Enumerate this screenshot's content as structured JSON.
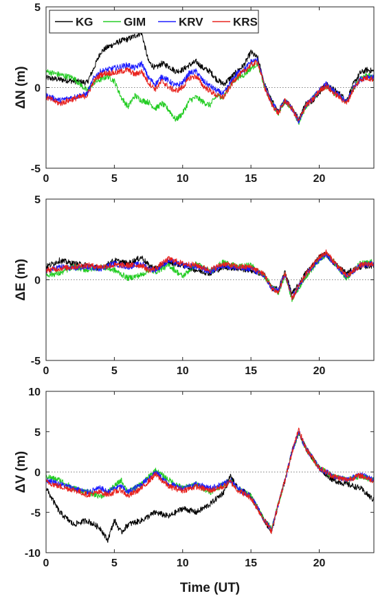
{
  "chart_data": {
    "type": "line",
    "legend": {
      "placement": "top-left",
      "entries": [
        {
          "label": "KG",
          "color": "#000000"
        },
        {
          "label": "GIM",
          "color": "#22cc22"
        },
        {
          "label": "KRV",
          "color": "#1a1aff"
        },
        {
          "label": "KRS",
          "color": "#e8201a"
        }
      ]
    },
    "xlabel": "Time (UT)",
    "xlim": [
      0,
      24
    ],
    "xticks": [
      "0",
      "5",
      "10",
      "15",
      "20"
    ],
    "panels": [
      {
        "ylabel": "ΔN (m)",
        "ylim": [
          -5,
          5
        ],
        "yticks": [
          "-5",
          "0",
          "5"
        ],
        "series": [
          {
            "name": "KG",
            "x": [
              0,
              1,
              2,
              3,
              3.5,
              4,
              4.5,
              5,
              5.5,
              6,
              6.5,
              7,
              7.5,
              8,
              8.5,
              9,
              9.5,
              10,
              10.5,
              11,
              11.5,
              12,
              12.5,
              13,
              13.5,
              14,
              14.5,
              15,
              15.5,
              16,
              16.5,
              17,
              17.5,
              18,
              18.5,
              19,
              19.5,
              20,
              20.5,
              21,
              21.5,
              22,
              22.5,
              23,
              23.5,
              24
            ],
            "y": [
              0.6,
              0.5,
              0.4,
              0.3,
              1.2,
              2.2,
              2.5,
              2.7,
              2.9,
              3.0,
              3.2,
              3.4,
              1.6,
              1.2,
              1.5,
              1.3,
              1.0,
              1.1,
              1.4,
              1.6,
              1.2,
              1.0,
              0.5,
              0.2,
              0.6,
              1.0,
              1.4,
              2.2,
              1.8,
              0.2,
              -0.8,
              -1.5,
              -0.8,
              -1.2,
              -2.0,
              -1.0,
              -0.8,
              -0.3,
              0.2,
              -0.1,
              -0.4,
              -0.8,
              0.2,
              0.9,
              1.1,
              1.0
            ]
          },
          {
            "name": "GIM",
            "x": [
              0,
              1,
              2,
              3,
              3.5,
              4,
              4.5,
              5,
              5.5,
              6,
              6.5,
              7,
              7.5,
              8,
              8.5,
              9,
              9.5,
              10,
              10.5,
              11,
              11.5,
              12,
              12.5,
              13,
              13.5,
              14,
              14.5,
              15,
              15.5,
              16,
              16.5,
              17,
              17.5,
              18,
              18.5,
              19,
              19.5,
              20,
              20.5,
              21,
              21.5,
              22,
              22.5,
              23,
              23.5,
              24
            ],
            "y": [
              1.0,
              0.8,
              0.6,
              -0.2,
              0.3,
              0.5,
              0.7,
              0.4,
              -0.6,
              -1.2,
              -0.5,
              -0.8,
              -0.9,
              -1.3,
              -1.0,
              -1.4,
              -2.0,
              -1.6,
              -0.8,
              -0.6,
              -0.9,
              -1.1,
              -0.5,
              -0.6,
              0.2,
              0.6,
              0.8,
              1.2,
              1.5,
              0.0,
              -0.9,
              -1.6,
              -0.8,
              -1.3,
              -2.2,
              -1.2,
              -0.7,
              -0.2,
              0.1,
              -0.3,
              -0.5,
              -0.9,
              -0.1,
              0.6,
              0.8,
              0.5
            ]
          },
          {
            "name": "KRV",
            "x": [
              0,
              1,
              2,
              3,
              3.5,
              4,
              4.5,
              5,
              5.5,
              6,
              6.5,
              7,
              7.5,
              8,
              8.5,
              9,
              9.5,
              10,
              10.5,
              11,
              11.5,
              12,
              12.5,
              13,
              13.5,
              14,
              14.5,
              15,
              15.5,
              16,
              16.5,
              17,
              17.5,
              18,
              18.5,
              19,
              19.5,
              20,
              20.5,
              21,
              21.5,
              22,
              22.5,
              23,
              23.5,
              24
            ],
            "y": [
              -0.5,
              -0.8,
              -0.6,
              -0.4,
              0.6,
              1.0,
              1.1,
              1.2,
              1.3,
              1.4,
              1.2,
              1.5,
              0.6,
              0.2,
              0.7,
              0.4,
              0.1,
              0.3,
              0.9,
              1.0,
              0.4,
              0.1,
              -0.2,
              -0.4,
              0.3,
              0.9,
              1.1,
              1.6,
              1.7,
              0.1,
              -0.9,
              -1.5,
              -0.8,
              -1.3,
              -2.1,
              -1.1,
              -0.7,
              -0.2,
              0.2,
              -0.2,
              -0.5,
              -0.9,
              0.0,
              0.5,
              0.7,
              0.6
            ]
          },
          {
            "name": "KRS",
            "x": [
              0,
              1,
              2,
              3,
              3.5,
              4,
              4.5,
              5,
              5.5,
              6,
              6.5,
              7,
              7.5,
              8,
              8.5,
              9,
              9.5,
              10,
              10.5,
              11,
              11.5,
              12,
              12.5,
              13,
              13.5,
              14,
              14.5,
              15,
              15.5,
              16,
              16.5,
              17,
              17.5,
              18,
              18.5,
              19,
              19.5,
              20,
              20.5,
              21,
              21.5,
              22,
              22.5,
              23,
              23.5,
              24
            ],
            "y": [
              -0.6,
              -1.0,
              -0.7,
              -0.5,
              0.4,
              0.8,
              0.9,
              0.9,
              1.0,
              1.1,
              0.8,
              1.0,
              0.3,
              -0.1,
              0.4,
              0.0,
              -0.2,
              0.0,
              0.6,
              0.7,
              0.1,
              -0.2,
              -0.5,
              -0.6,
              0.1,
              0.7,
              1.0,
              1.4,
              1.6,
              0.0,
              -1.0,
              -1.6,
              -0.8,
              -1.3,
              -2.1,
              -1.1,
              -0.8,
              -0.2,
              0.1,
              -0.3,
              -0.6,
              -1.0,
              -0.1,
              0.5,
              0.6,
              0.5
            ]
          }
        ]
      },
      {
        "ylabel": "ΔE (m)",
        "ylim": [
          -5,
          5
        ],
        "yticks": [
          "-5",
          "0",
          "5"
        ],
        "series": [
          {
            "name": "KG",
            "x": [
              0,
              1,
              2,
              3,
              4,
              5,
              6,
              7,
              7.5,
              8,
              9,
              10,
              11,
              12,
              13,
              14,
              15,
              16,
              16.5,
              17,
              17.5,
              18,
              18.5,
              19,
              20,
              20.5,
              21,
              22,
              23,
              24
            ],
            "y": [
              0.8,
              1.2,
              1.0,
              0.9,
              0.7,
              1.2,
              1.0,
              1.4,
              0.9,
              0.7,
              1.1,
              0.9,
              0.6,
              0.4,
              0.8,
              0.7,
              0.6,
              0.3,
              -0.5,
              -0.6,
              0.5,
              -0.9,
              -0.3,
              0.4,
              1.4,
              1.6,
              1.1,
              0.4,
              0.8,
              0.9
            ]
          },
          {
            "name": "GIM",
            "x": [
              0,
              1,
              2,
              3,
              4,
              5,
              6,
              7,
              7.5,
              8,
              9,
              10,
              11,
              12,
              13,
              14,
              15,
              16,
              16.5,
              17,
              17.5,
              18,
              18.5,
              19,
              20,
              20.5,
              21,
              22,
              23,
              24
            ],
            "y": [
              0.3,
              0.4,
              0.8,
              0.6,
              0.8,
              0.6,
              0.1,
              0.3,
              0.6,
              0.5,
              0.9,
              0.2,
              1.0,
              0.5,
              1.1,
              0.8,
              0.9,
              0.2,
              -0.4,
              -0.8,
              0.3,
              -1.2,
              -0.5,
              0.2,
              1.2,
              1.5,
              1.2,
              0.1,
              1.0,
              1.1
            ]
          },
          {
            "name": "KRV",
            "x": [
              0,
              1,
              2,
              3,
              4,
              5,
              6,
              7,
              7.5,
              8,
              9,
              10,
              11,
              12,
              13,
              14,
              15,
              16,
              16.5,
              17,
              17.5,
              18,
              18.5,
              19,
              20,
              20.5,
              21,
              22,
              23,
              24
            ],
            "y": [
              0.5,
              0.8,
              0.7,
              0.8,
              0.7,
              1.0,
              0.8,
              1.0,
              0.7,
              0.6,
              1.2,
              0.9,
              0.8,
              0.5,
              0.9,
              0.7,
              0.7,
              0.2,
              -0.5,
              -0.7,
              0.4,
              -1.1,
              -0.4,
              0.3,
              1.3,
              1.6,
              1.1,
              0.2,
              0.9,
              1.0
            ]
          },
          {
            "name": "KRS",
            "x": [
              0,
              1,
              2,
              3,
              4,
              5,
              6,
              7,
              7.5,
              8,
              9,
              10,
              11,
              12,
              13,
              14,
              15,
              16,
              16.5,
              17,
              17.5,
              18,
              18.5,
              19,
              20,
              20.5,
              21,
              22,
              23,
              24
            ],
            "y": [
              0.6,
              0.7,
              0.8,
              0.9,
              0.8,
              0.9,
              0.9,
              0.9,
              0.6,
              0.7,
              1.3,
              1.0,
              0.9,
              0.6,
              1.0,
              0.8,
              0.8,
              0.3,
              -0.5,
              -0.8,
              0.4,
              -1.2,
              -0.4,
              0.3,
              1.4,
              1.7,
              1.2,
              0.2,
              0.9,
              1.0
            ]
          }
        ]
      },
      {
        "ylabel": "ΔV (m)",
        "ylim": [
          -10,
          10
        ],
        "yticks": [
          "-10",
          "-5",
          "0",
          "5",
          "10"
        ],
        "series": [
          {
            "name": "KG",
            "x": [
              0,
              0.5,
              1,
              2,
              3,
              4,
              4.5,
              5,
              5.5,
              6,
              7,
              8,
              9,
              10,
              11,
              12,
              13,
              13.5,
              14,
              15,
              16,
              16.5,
              17,
              17.5,
              18,
              18.5,
              19,
              20,
              21,
              22,
              23,
              24
            ],
            "y": [
              -2.0,
              -3.5,
              -5.0,
              -6.5,
              -6.0,
              -7.0,
              -8.5,
              -6.0,
              -7.5,
              -6.5,
              -6.0,
              -5.0,
              -5.5,
              -4.5,
              -5.0,
              -4.0,
              -2.5,
              -0.5,
              -2.0,
              -3.0,
              -6.0,
              -7.5,
              -4.0,
              -1.0,
              2.5,
              5.0,
              3.0,
              0.5,
              -1.0,
              -1.5,
              -2.0,
              -3.5
            ]
          },
          {
            "name": "GIM",
            "x": [
              0,
              0.5,
              1,
              2,
              3,
              4,
              4.5,
              5,
              5.5,
              6,
              7,
              8,
              9,
              10,
              11,
              12,
              13,
              13.5,
              14,
              15,
              16,
              16.5,
              17,
              17.5,
              18,
              18.5,
              19,
              20,
              21,
              22,
              23,
              24
            ],
            "y": [
              -0.5,
              -0.8,
              -1.0,
              -2.0,
              -2.5,
              -3.0,
              -2.5,
              -1.8,
              -1.0,
              -2.5,
              -1.5,
              0.2,
              -1.0,
              -2.0,
              -1.5,
              -2.5,
              -1.5,
              -1.0,
              -2.0,
              -3.0,
              -6.0,
              -7.0,
              -4.0,
              -1.0,
              2.5,
              4.8,
              3.0,
              0.5,
              -0.5,
              -1.0,
              -0.5,
              -1.0
            ]
          },
          {
            "name": "KRV",
            "x": [
              0,
              0.5,
              1,
              2,
              3,
              4,
              4.5,
              5,
              5.5,
              6,
              7,
              8,
              9,
              10,
              11,
              12,
              13,
              13.5,
              14,
              15,
              16,
              16.5,
              17,
              17.5,
              18,
              18.5,
              19,
              20,
              21,
              22,
              23,
              24
            ],
            "y": [
              -1.0,
              -1.2,
              -1.5,
              -2.0,
              -2.5,
              -2.0,
              -2.5,
              -2.0,
              -1.8,
              -2.5,
              -1.5,
              0.0,
              -1.5,
              -2.0,
              -1.5,
              -2.0,
              -1.5,
              -1.0,
              -2.0,
              -3.0,
              -6.0,
              -7.2,
              -4.0,
              -1.0,
              2.5,
              5.0,
              3.0,
              0.5,
              -0.5,
              -1.0,
              -0.3,
              -1.0
            ]
          },
          {
            "name": "KRS",
            "x": [
              0,
              0.5,
              1,
              2,
              3,
              4,
              4.5,
              5,
              5.5,
              6,
              7,
              8,
              9,
              10,
              11,
              12,
              13,
              13.5,
              14,
              15,
              16,
              16.5,
              17,
              17.5,
              18,
              18.5,
              19,
              20,
              21,
              22,
              23,
              24
            ],
            "y": [
              -1.2,
              -1.5,
              -1.8,
              -2.2,
              -2.8,
              -2.5,
              -2.8,
              -2.5,
              -2.2,
              -3.0,
              -2.0,
              -0.3,
              -1.8,
              -2.3,
              -1.8,
              -2.3,
              -1.8,
              -1.2,
              -2.2,
              -3.2,
              -6.0,
              -7.3,
              -4.0,
              -1.0,
              2.5,
              5.2,
              3.0,
              0.5,
              -0.5,
              -1.0,
              -0.4,
              -1.1
            ]
          }
        ]
      }
    ]
  }
}
